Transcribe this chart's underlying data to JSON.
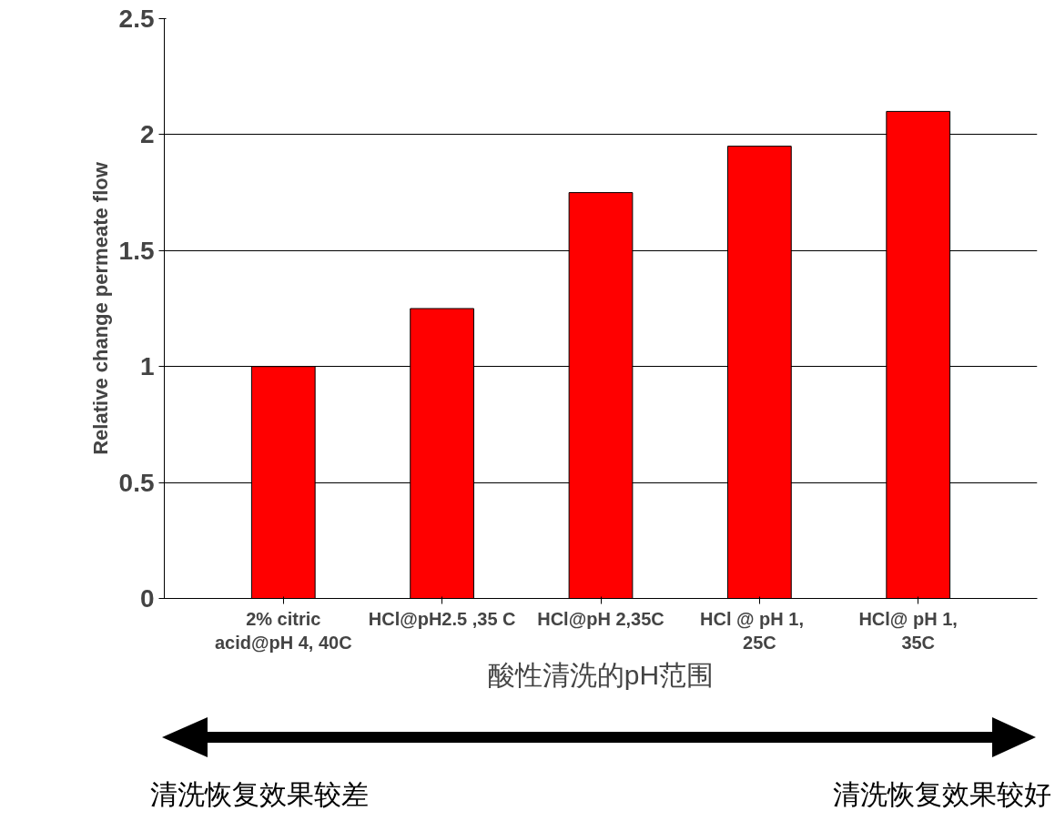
{
  "chart_data": {
    "type": "bar",
    "categories": [
      "2% citric acid@pH 4, 40C",
      "HCl@pH2.5 ,35 C",
      "HCl@pH 2,35C",
      "HCl @    pH 1, 25C",
      "HCl@     pH 1, 35C"
    ],
    "values": [
      1.0,
      1.25,
      1.75,
      1.95,
      2.1
    ],
    "color": "#ff0000",
    "ylabel": "Relative change permeate flow",
    "xlabel": "酸性清洗的pH范围",
    "annotations": [
      "清洗恢复效果较差",
      "清洗恢复效果较好"
    ],
    "ylim": [
      0,
      2.5
    ],
    "yticks": [
      0,
      0.5,
      1,
      1.5,
      2,
      2.5
    ],
    "grid": "y"
  }
}
